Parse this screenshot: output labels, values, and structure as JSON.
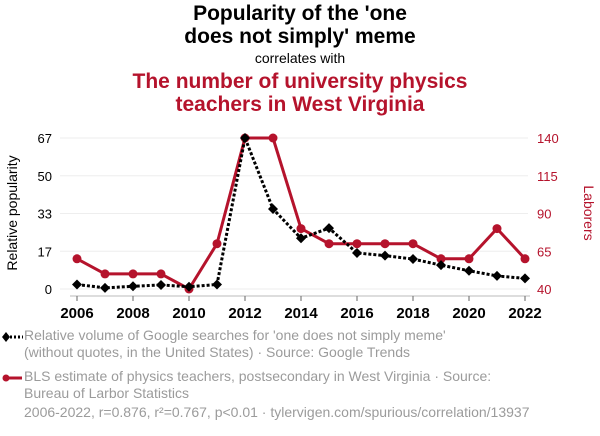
{
  "header": {
    "title_line1": "Popularity of the 'one",
    "title_line2": "does not simply' meme",
    "subtitle": "correlates with",
    "title2_line1": "The number of university physics",
    "title2_line2": "teachers in West Virginia"
  },
  "colors": {
    "series1": "#000000",
    "series2": "#b5132c",
    "grid": "#eeeeee",
    "legend_text": "#9b9b9b"
  },
  "legend": {
    "series1_line1": "Relative volume of Google searches for 'one does not simply meme'",
    "series1_line2": "(without quotes, in the United States) · Source: Google Trends",
    "series2_line1": "BLS estimate of physics teachers, postsecondary in West Virginia · Source:",
    "series2_line2": "Bureau of Larbor Statistics"
  },
  "footer": "2006-2022, r=0.876, r²=0.767, p<0.01 · tylervigen.com/spurious/correlation/13937",
  "chart_data": {
    "type": "line",
    "title": "Popularity of the 'one does not simply' meme correlates with The number of university physics teachers in West Virginia",
    "x": [
      2006,
      2007,
      2008,
      2009,
      2010,
      2011,
      2012,
      2013,
      2014,
      2015,
      2016,
      2017,
      2018,
      2019,
      2020,
      2021,
      2022
    ],
    "xticks": [
      "2006",
      "2008",
      "2010",
      "2012",
      "2014",
      "2016",
      "2018",
      "2020",
      "2022"
    ],
    "xlim": [
      2006,
      2022
    ],
    "grid": true,
    "series": [
      {
        "name": "Relative volume of Google searches for 'one does not simply meme'",
        "axis": "left",
        "style": "dotted-diamond",
        "values": [
          2,
          0.5,
          1.2,
          1.8,
          1,
          2,
          67,
          35.5,
          22.5,
          27,
          16,
          14.8,
          13.3,
          10.6,
          8.1,
          5.8,
          4.7
        ]
      },
      {
        "name": "BLS estimate of physics teachers, postsecondary in West Virginia",
        "axis": "right",
        "style": "solid-circle",
        "values": [
          60,
          50,
          50,
          50,
          40,
          70,
          140,
          140,
          80,
          70,
          70,
          70,
          70,
          60,
          60,
          80,
          60
        ]
      }
    ],
    "left_axis": {
      "label": "Relative popularity",
      "ylim": [
        0,
        67
      ],
      "ticks": [
        "0",
        "17",
        "33",
        "50",
        "67"
      ],
      "tick_values": [
        0,
        16.75,
        33.5,
        50.25,
        67
      ]
    },
    "right_axis": {
      "label": "Laborers",
      "ylim": [
        40,
        140
      ],
      "ticks": [
        "40",
        "65",
        "90",
        "115",
        "140"
      ],
      "tick_values": [
        40,
        65,
        90,
        115,
        140
      ]
    },
    "legend_position": "bottom-left"
  }
}
